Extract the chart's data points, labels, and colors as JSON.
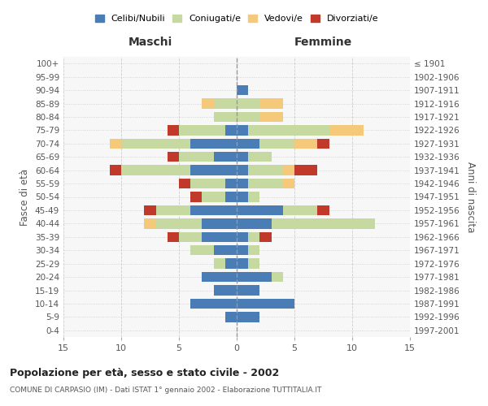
{
  "age_groups": [
    "0-4",
    "5-9",
    "10-14",
    "15-19",
    "20-24",
    "25-29",
    "30-34",
    "35-39",
    "40-44",
    "45-49",
    "50-54",
    "55-59",
    "60-64",
    "65-69",
    "70-74",
    "75-79",
    "80-84",
    "85-89",
    "90-94",
    "95-99",
    "100+"
  ],
  "birth_years": [
    "1997-2001",
    "1992-1996",
    "1987-1991",
    "1982-1986",
    "1977-1981",
    "1972-1976",
    "1967-1971",
    "1962-1966",
    "1957-1961",
    "1952-1956",
    "1947-1951",
    "1942-1946",
    "1937-1941",
    "1932-1936",
    "1927-1931",
    "1922-1926",
    "1917-1921",
    "1912-1916",
    "1907-1911",
    "1902-1906",
    "≤ 1901"
  ],
  "maschi": {
    "celibi": [
      0,
      1,
      4,
      2,
      3,
      1,
      2,
      3,
      3,
      4,
      1,
      1,
      4,
      2,
      4,
      1,
      0,
      0,
      0,
      0,
      0
    ],
    "coniugati": [
      0,
      0,
      0,
      0,
      0,
      1,
      2,
      2,
      4,
      3,
      2,
      3,
      6,
      3,
      6,
      4,
      2,
      2,
      0,
      0,
      0
    ],
    "vedovi": [
      0,
      0,
      0,
      0,
      0,
      0,
      0,
      0,
      1,
      0,
      0,
      0,
      0,
      0,
      1,
      0,
      0,
      1,
      0,
      0,
      0
    ],
    "divorziati": [
      0,
      0,
      0,
      0,
      0,
      0,
      0,
      1,
      0,
      1,
      1,
      1,
      1,
      1,
      0,
      1,
      0,
      0,
      0,
      0,
      0
    ]
  },
  "femmine": {
    "nubili": [
      0,
      2,
      5,
      2,
      3,
      1,
      1,
      1,
      3,
      4,
      1,
      1,
      1,
      1,
      2,
      1,
      0,
      0,
      1,
      0,
      0
    ],
    "coniugate": [
      0,
      0,
      0,
      0,
      1,
      1,
      1,
      1,
      9,
      3,
      1,
      3,
      3,
      2,
      3,
      7,
      2,
      2,
      0,
      0,
      0
    ],
    "vedove": [
      0,
      0,
      0,
      0,
      0,
      0,
      0,
      0,
      0,
      0,
      0,
      1,
      1,
      0,
      2,
      3,
      2,
      2,
      0,
      0,
      0
    ],
    "divorziate": [
      0,
      0,
      0,
      0,
      0,
      0,
      0,
      1,
      0,
      1,
      0,
      0,
      2,
      0,
      1,
      0,
      0,
      0,
      0,
      0,
      0
    ]
  },
  "color_celibi": "#4a7db5",
  "color_coniugati": "#c5d9a0",
  "color_vedovi": "#f5c97a",
  "color_divorziati": "#c0392b",
  "xlim": 15,
  "title": "Popolazione per età, sesso e stato civile - 2002",
  "subtitle": "COMUNE DI CARPASIO (IM) - Dati ISTAT 1° gennaio 2002 - Elaborazione TUTTITALIA.IT",
  "ylabel_left": "Fasce di età",
  "ylabel_right": "Anni di nascita",
  "xlabel_maschi": "Maschi",
  "xlabel_femmine": "Femmine",
  "legend_labels": [
    "Celibi/Nubili",
    "Coniugati/e",
    "Vedovi/e",
    "Divorziati/e"
  ],
  "bg_color": "#ffffff"
}
